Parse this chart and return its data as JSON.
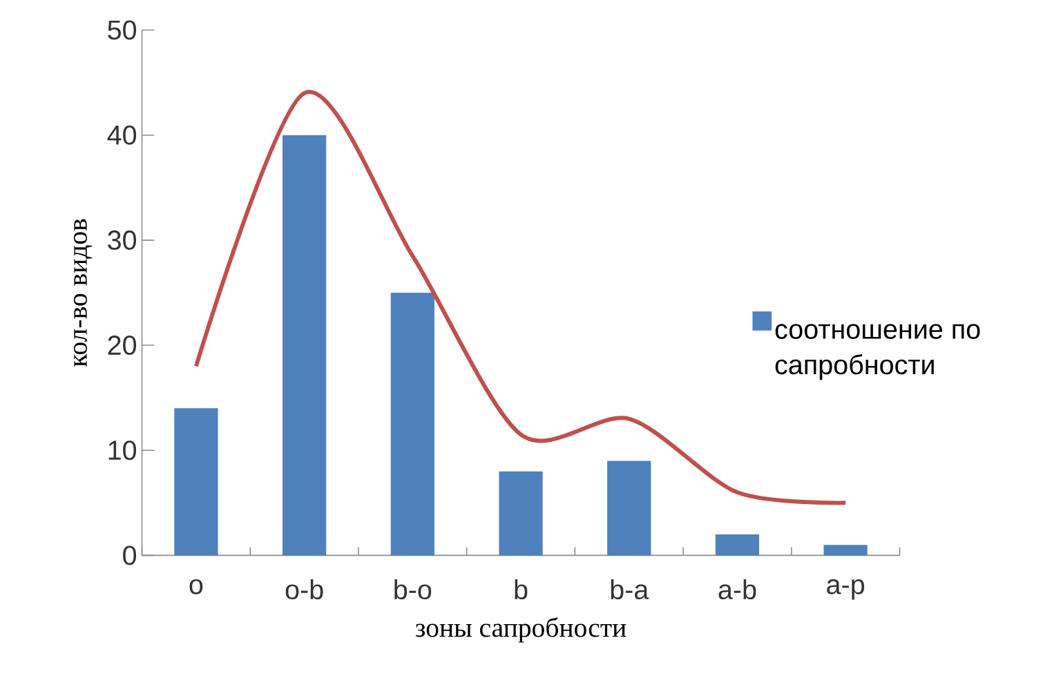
{
  "chart_data": {
    "type": "bar",
    "xlabel": "зоны сапробности",
    "ylabel": "кол-во видов",
    "categories": [
      "o",
      "o-b",
      "b-o",
      "b",
      "b-a",
      "a-b",
      "a-p"
    ],
    "ylim": [
      0,
      50
    ],
    "yticks": [
      0,
      10,
      20,
      30,
      40,
      50
    ],
    "legend": "right",
    "series": [
      {
        "name": "соотношение по сапробности",
        "color": "#4f81bd",
        "values": [
          14,
          40,
          25,
          8,
          9,
          2,
          1
        ]
      },
      {
        "type": "line",
        "color": "#c0504d",
        "values": [
          18,
          44,
          28.5,
          11.5,
          13,
          6,
          5
        ]
      }
    ]
  }
}
